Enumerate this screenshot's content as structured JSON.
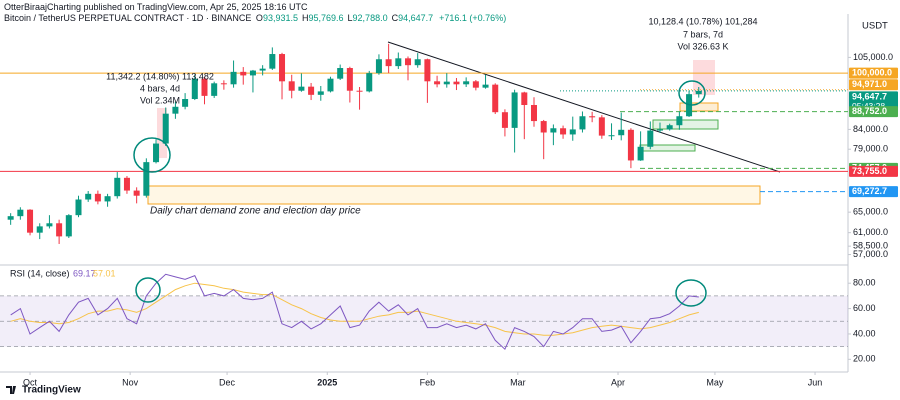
{
  "chart_data": {
    "type": "candlestick",
    "publisher": "OtterBiraajCharting published on TradingView.com, Apr 25, 2025 18:16 UTC",
    "title": "Bitcoin / TetherUS PERPETUAL CONTRACT · 1D · BINANCE",
    "ohlc_legend": [
      {
        "k": "O",
        "v": "93,931.5"
      },
      {
        "k": "H",
        "v": "95,769.6"
      },
      {
        "k": "L",
        "v": "92,788.0"
      },
      {
        "k": "C",
        "v": "94,647.7"
      }
    ],
    "change": "+716.1 (+0.76%)",
    "currency": "USDT",
    "up_color": "#089981",
    "down_color": "#f23645",
    "log_scale": true,
    "ylim": [
      55700,
      117900
    ],
    "yticks": [
      {
        "value": 105000,
        "label": "105,000.0"
      },
      {
        "value": 84000,
        "label": "84,000.0"
      },
      {
        "value": 79000,
        "label": "79,000.0"
      },
      {
        "value": 65000,
        "label": "65,000.0"
      },
      {
        "value": 61000,
        "label": "61,000.0"
      },
      {
        "value": 58500,
        "label": "58,500.0"
      },
      {
        "value": 57000,
        "label": "57,000.0"
      }
    ],
    "xlim": [
      -1.1,
      86.4
    ],
    "xticks": [
      {
        "value": 2,
        "label": "Oct"
      },
      {
        "value": 12.33,
        "label": "Nov"
      },
      {
        "value": 22.33,
        "label": "Dec"
      },
      {
        "value": 32.67,
        "label": "2025"
      },
      {
        "value": 43,
        "label": "Feb"
      },
      {
        "value": 52.33,
        "label": "Mar"
      },
      {
        "value": 62.67,
        "label": "Apr"
      },
      {
        "value": 72.67,
        "label": "May"
      },
      {
        "value": 83,
        "label": "Jun"
      }
    ],
    "candles": {
      "open": [
        63500,
        64200,
        65500,
        61000,
        62200,
        62800,
        60300,
        64400,
        67600,
        68800,
        67200,
        68300,
        72300,
        69500,
        68400,
        75900,
        80400,
        88200,
        90100,
        92300,
        98300,
        93200,
        96900,
        96600,
        100400,
        99300,
        100800,
        101400,
        106100,
        97500,
        94700,
        95900,
        93500,
        94500,
        98300,
        101600,
        94700,
        94500,
        100000,
        104400,
        102200,
        104700,
        102500,
        104400,
        97500,
        96600,
        97400,
        96600,
        97500,
        95600,
        96500,
        88600,
        84400,
        94200,
        90600,
        86200,
        83200,
        84300,
        82700,
        84000,
        87500,
        87200,
        82400,
        82500,
        83900,
        76300,
        79600,
        83700,
        84000,
        85100,
        87500,
        93700
      ],
      "high": [
        64800,
        66000,
        65600,
        62800,
        64400,
        63500,
        64600,
        68400,
        69400,
        69500,
        68800,
        73600,
        72700,
        70200,
        76800,
        81500,
        89900,
        91500,
        94000,
        99600,
        98900,
        97400,
        97800,
        104000,
        101900,
        101000,
        102500,
        108300,
        106500,
        99500,
        99900,
        97000,
        96100,
        98900,
        102700,
        102000,
        95800,
        100700,
        106000,
        109500,
        106600,
        105300,
        106400,
        104600,
        99200,
        100000,
        98500,
        98700,
        97900,
        99500,
        96900,
        89400,
        95000,
        94400,
        92800,
        86500,
        85300,
        85000,
        87400,
        88800,
        88700,
        87800,
        85600,
        88500,
        84300,
        83500,
        86100,
        85800,
        85500,
        88800,
        94700,
        95800
      ],
      "low": [
        62500,
        63500,
        60500,
        59800,
        61800,
        58900,
        60000,
        64000,
        67100,
        66600,
        66100,
        67800,
        68800,
        66800,
        68000,
        75600,
        79800,
        86800,
        89400,
        92000,
        90800,
        92600,
        95000,
        95600,
        96500,
        94200,
        99300,
        101000,
        92200,
        92500,
        94400,
        92000,
        91800,
        94200,
        97900,
        91300,
        89300,
        94200,
        99500,
        100000,
        101300,
        97800,
        101700,
        91200,
        95700,
        95600,
        94900,
        95800,
        94800,
        95300,
        88100,
        82200,
        78200,
        81500,
        84700,
        76600,
        80000,
        81600,
        81100,
        83200,
        85900,
        81600,
        81300,
        81200,
        74500,
        76200,
        79000,
        83100,
        83700,
        83900,
        87300,
        92700
      ],
      "close": [
        64200,
        65500,
        61000,
        62200,
        62800,
        60300,
        64400,
        67600,
        68800,
        67200,
        68300,
        72300,
        69500,
        68400,
        75900,
        80400,
        88200,
        90100,
        92300,
        98300,
        93200,
        96900,
        96600,
        100400,
        99300,
        100800,
        101400,
        106100,
        97500,
        94700,
        95900,
        93500,
        94500,
        98300,
        101600,
        94700,
        94500,
        100000,
        104400,
        102200,
        104700,
        102500,
        104400,
        97500,
        96600,
        97400,
        96600,
        97500,
        95600,
        96500,
        88600,
        84400,
        94200,
        90600,
        86200,
        83200,
        84300,
        82700,
        84000,
        87500,
        87200,
        82400,
        82500,
        83900,
        76300,
        79600,
        83700,
        84000,
        85100,
        87500,
        93700,
        94647.7
      ]
    },
    "price_tags": [
      {
        "value": 100000,
        "label": "100,000.0",
        "color": "#f5a623"
      },
      {
        "value": 94971,
        "label": "94,971.0",
        "color": "#f5a623"
      },
      {
        "value": 94647.7,
        "label": "94,647.7",
        "countdown": "05:43:28",
        "color": "#089981"
      },
      {
        "value": 88752,
        "label": "88,752.0",
        "color": "#4caf50"
      },
      {
        "value": 74457,
        "label": "74,457.0",
        "color": "#4caf50"
      },
      {
        "value": 73755,
        "label": "73,755.0",
        "color": "#f23645"
      },
      {
        "value": 69272.7,
        "label": "69,272.7",
        "color": "#2196f3"
      }
    ],
    "annotations": [
      "10,128.4 (10.78%) 101,284",
      "7 bars, 7d",
      "Vol 326.63 K",
      "11,342.2 (14.80%) 113,482",
      "4 bars, 4d",
      "Vol 2.34M"
    ],
    "zone_label": "Daily chart demand zone and election day price",
    "rsi": {
      "title": "RSI (14, close)",
      "color": "#7e57c2",
      "values": [
        55,
        60,
        40,
        45,
        50,
        42,
        55,
        65,
        68,
        55,
        60,
        68,
        52,
        48,
        70,
        80,
        87,
        85,
        83,
        86,
        70,
        72,
        70,
        75,
        68,
        67,
        68,
        73,
        48,
        45,
        50,
        44,
        48,
        55,
        62,
        45,
        47,
        58,
        65,
        58,
        63,
        55,
        60,
        45,
        45,
        48,
        45,
        47,
        44,
        48,
        35,
        28,
        45,
        42,
        38,
        30,
        42,
        40,
        45,
        52,
        52,
        42,
        43,
        46,
        33,
        42,
        52,
        53,
        56,
        62,
        70,
        69.17
      ],
      "ma": {
        "color": "#f7c34a",
        "values": [
          50,
          52,
          50,
          49,
          49,
          48,
          49,
          52,
          56,
          58,
          58,
          60,
          59,
          57,
          60,
          65,
          70,
          75,
          78,
          80,
          79,
          78,
          76,
          75,
          73,
          72,
          71,
          71,
          67,
          63,
          60,
          56,
          53,
          51,
          50,
          50,
          50,
          52,
          54,
          55,
          57,
          57,
          58,
          56,
          54,
          52,
          50,
          49,
          48,
          47,
          45,
          42,
          41,
          40,
          40,
          39,
          39,
          40,
          41,
          43,
          45,
          46,
          47,
          46,
          45,
          44,
          45,
          47,
          49,
          52,
          55,
          57.01
        ]
      },
      "ylim": [
        10,
        92
      ],
      "yticks": [
        {
          "value": 80,
          "label": "80.00"
        },
        {
          "value": 60,
          "label": "60.00"
        },
        {
          "value": 40,
          "label": "40.00"
        },
        {
          "value": 20,
          "label": "20.00"
        }
      ],
      "band": [
        30,
        70
      ],
      "levels": [
        70,
        50,
        30
      ]
    },
    "footer": "TradingView"
  }
}
